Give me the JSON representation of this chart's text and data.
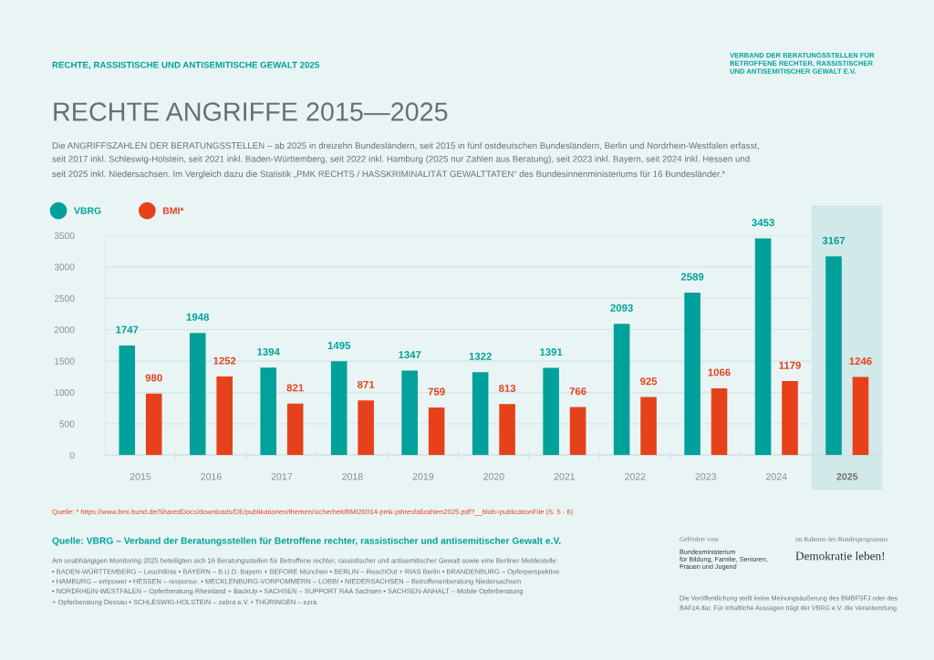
{
  "chart_data": {
    "type": "bar",
    "title": "RECHTE ANGRIFFE 2015—2025",
    "subtitle": "Die ANGRIFFSZAHLEN DER BERATUNGSSTELLEN – ab 2025 in dreizehn Bundesländern, seit 2015 in fünf ostdeutschen Bundesländern, Berlin und Nordrhein-Westfalen erfasst,\nseit 2017 inkl. Schleswig-Holstein, seit 2021 inkl. Baden-Württemberg, seit 2022 inkl. Hamburg (2025 nur Zahlen aus Beratung), seit 2023 inkl. Bayern, seit 2024 inkl. Hessen und\nseit 2025 inkl. Niedersachsen. Im Vergleich dazu die Statistik „PMK RECHTS / HASSKRIMINALITÄT GEWALTTATEN“ des Bundesinnenministeriums für 16 Bundesländer.*",
    "categories": [
      "2015",
      "2016",
      "2017",
      "2018",
      "2019",
      "2020",
      "2021",
      "2022",
      "2023",
      "2024",
      "2025"
    ],
    "series": [
      {
        "name": "VBRG",
        "color": "#00a19a",
        "values": [
          1747,
          1948,
          1394,
          1495,
          1347,
          1322,
          1391,
          2093,
          2589,
          3453,
          3167
        ]
      },
      {
        "name": "BMI*",
        "color": "#e6411a",
        "values": [
          980,
          1252,
          821,
          871,
          759,
          813,
          766,
          925,
          1066,
          1179,
          1246
        ]
      }
    ],
    "ylim": [
      0,
      3500
    ],
    "yticks": [
      0,
      500,
      1000,
      1500,
      2000,
      2500,
      3000,
      3500
    ],
    "grid": "y",
    "legend": "top left",
    "data_labels": true,
    "bands": [
      {
        "axis": "x",
        "from": "2025",
        "to": "2025",
        "color": "#d2e9ea"
      }
    ],
    "annotations": [
      "RECHTE, RASSISTISCHE UND ANTISEMITISCHE GEWALT 2025",
      "VERBAND DER BERATUNGSSTELLEN FÜR\nBETROFFENE RECHTER, RASSISTISCHER\nUND ANTISEMITISCHER GEWALT E.V.",
      "Quelle: * https://www.bmi.bund.de/SharedDocs/downloads/DE/publikationen/themen/sicherheit/BMI26014-pmk-jahresfallzahlen2025.pdf?__blob=publicationFile (S. 5 - 6)",
      "Quelle: VBRG – Verband der Beratungsstellen für Betroffene rechter, rassistischer und antisemitischer Gewalt e.V.",
      "Am unabhängigen Monitoring 2025 beteiligten sich 16 Beratungsstellen für Betroffene rechter, rassistischer und antisemitischer Gewalt sowie eine Berliner Meldestelle:\n• BADEN-WÜRTTEMBERG – Leuchtlinie • BAYERN – B.U.D. Bayern + BEFORE München • BERLIN – ReachOut + RIAS Berlin • BRANDENBURG – Opferperspektive\n• HAMBURG – empower • HESSEN – response. • MECKLENBURG-VORPOMMERN – LOBBI • NIEDERSACHSEN – Betroffenenberatung Niedersachsen\n• NORDRHEIN-WESTFALEN – Opferberatung Rheinland + BackUp • SACHSEN – SUPPORT RAA Sachsen • SACHSEN-ANHALT – Mobile Opferberatung\n+ Opferberatung Dessau • SCHLESWIG-HOLSTEIN – zebra e.V. • THÜRINGEN – ezra",
      "Gefördert vom",
      "Bundesministerium\nfür Bildung, Familie, Senioren,\nFrauen und Jugend",
      "im Rahmen des Bundesprogramms",
      "Demokratie leben!",
      "Die Veröffentlichung stellt keine Meinungsäußerung des BMBFSFJ oder des\nBAFzA dar. Für inhaltliche Aussagen trägt der VBRG e.V. die Verantwortung."
    ]
  }
}
